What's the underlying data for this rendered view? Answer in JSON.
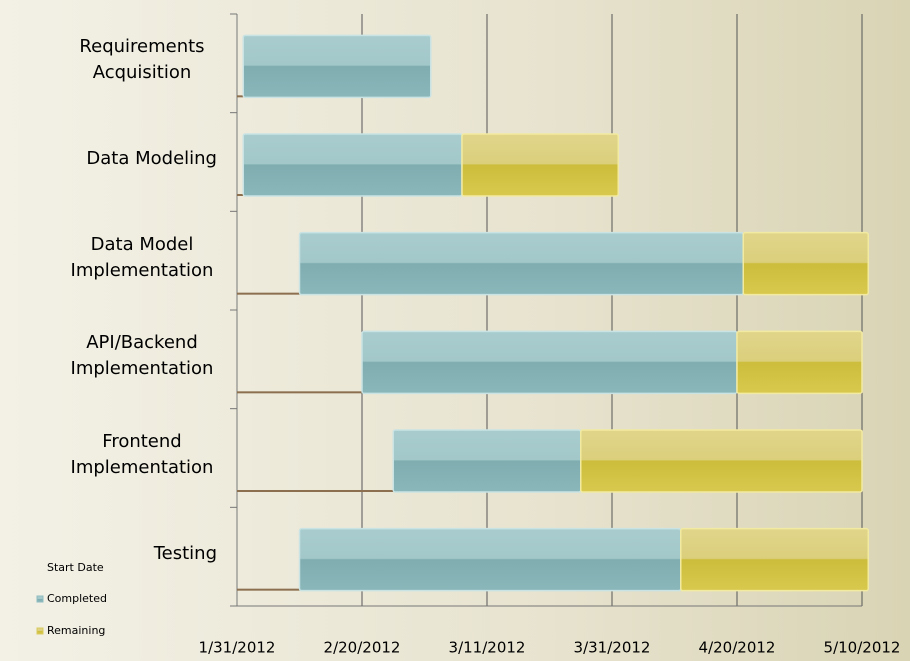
{
  "chart_data": {
    "type": "gantt",
    "categories": [
      "Requirements Acquisition",
      "Data Modeling",
      "Data Model Implementation",
      "API/Backend Implementation",
      "Frontend Implementation",
      "Testing"
    ],
    "series": [
      {
        "name": "Start Date",
        "color": "#8b6f4e",
        "values": [
          40940,
          40940,
          40949,
          40959,
          40964,
          40949
        ]
      },
      {
        "name": "Completed",
        "color": "#8fbcbf",
        "values": [
          30,
          35,
          71,
          60,
          30,
          61
        ]
      },
      {
        "name": "Remaining",
        "color": "#d9cb5c",
        "values": [
          0,
          25,
          20,
          20,
          45,
          30
        ]
      }
    ],
    "xlim": [
      40939,
      41039
    ],
    "xticks": [
      {
        "value": 40939,
        "label": "1/31/2012"
      },
      {
        "value": 40959,
        "label": "2/20/2012"
      },
      {
        "value": 40979,
        "label": "3/11/2012"
      },
      {
        "value": 40999,
        "label": "3/31/2012"
      },
      {
        "value": 41019,
        "label": "4/20/2012"
      },
      {
        "value": 41039,
        "label": "5/10/2012"
      }
    ],
    "grid": true
  }
}
